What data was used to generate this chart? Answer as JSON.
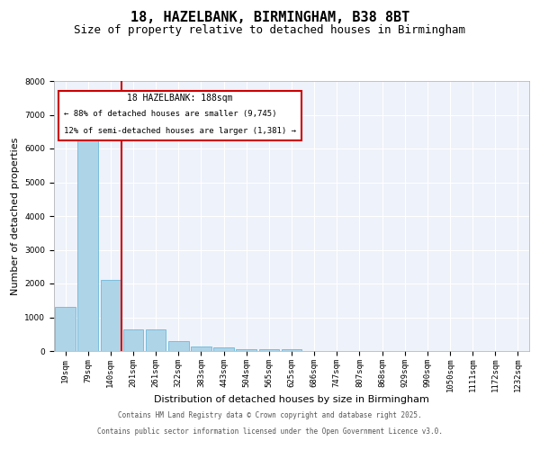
{
  "title": "18, HAZELBANK, BIRMINGHAM, B38 8BT",
  "subtitle": "Size of property relative to detached houses in Birmingham",
  "xlabel": "Distribution of detached houses by size in Birmingham",
  "ylabel": "Number of detached properties",
  "categories": [
    "19sqm",
    "79sqm",
    "140sqm",
    "201sqm",
    "261sqm",
    "322sqm",
    "383sqm",
    "443sqm",
    "504sqm",
    "565sqm",
    "625sqm",
    "686sqm",
    "747sqm",
    "807sqm",
    "868sqm",
    "929sqm",
    "990sqm",
    "1050sqm",
    "1111sqm",
    "1172sqm",
    "1232sqm"
  ],
  "values": [
    1300,
    6600,
    2100,
    650,
    650,
    300,
    130,
    100,
    50,
    50,
    50,
    10,
    10,
    5,
    5,
    3,
    3,
    2,
    2,
    2,
    2
  ],
  "bar_color": "#aed4e8",
  "bar_edge_color": "#5aafd4",
  "vline_x": 2.5,
  "vline_color": "#cc0000",
  "annotation_title": "18 HAZELBANK: 188sqm",
  "annotation_line2": "← 88% of detached houses are smaller (9,745)",
  "annotation_line3": "12% of semi-detached houses are larger (1,381) →",
  "annotation_box_color": "#cc0000",
  "ylim": [
    0,
    8000
  ],
  "yticks": [
    0,
    1000,
    2000,
    3000,
    4000,
    5000,
    6000,
    7000,
    8000
  ],
  "footer_line1": "Contains HM Land Registry data © Crown copyright and database right 2025.",
  "footer_line2": "Contains public sector information licensed under the Open Government Licence v3.0.",
  "bg_color": "#eef2fa",
  "grid_color": "#ffffff",
  "title_fontsize": 11,
  "subtitle_fontsize": 9,
  "axis_label_fontsize": 8,
  "tick_fontsize": 6.5
}
